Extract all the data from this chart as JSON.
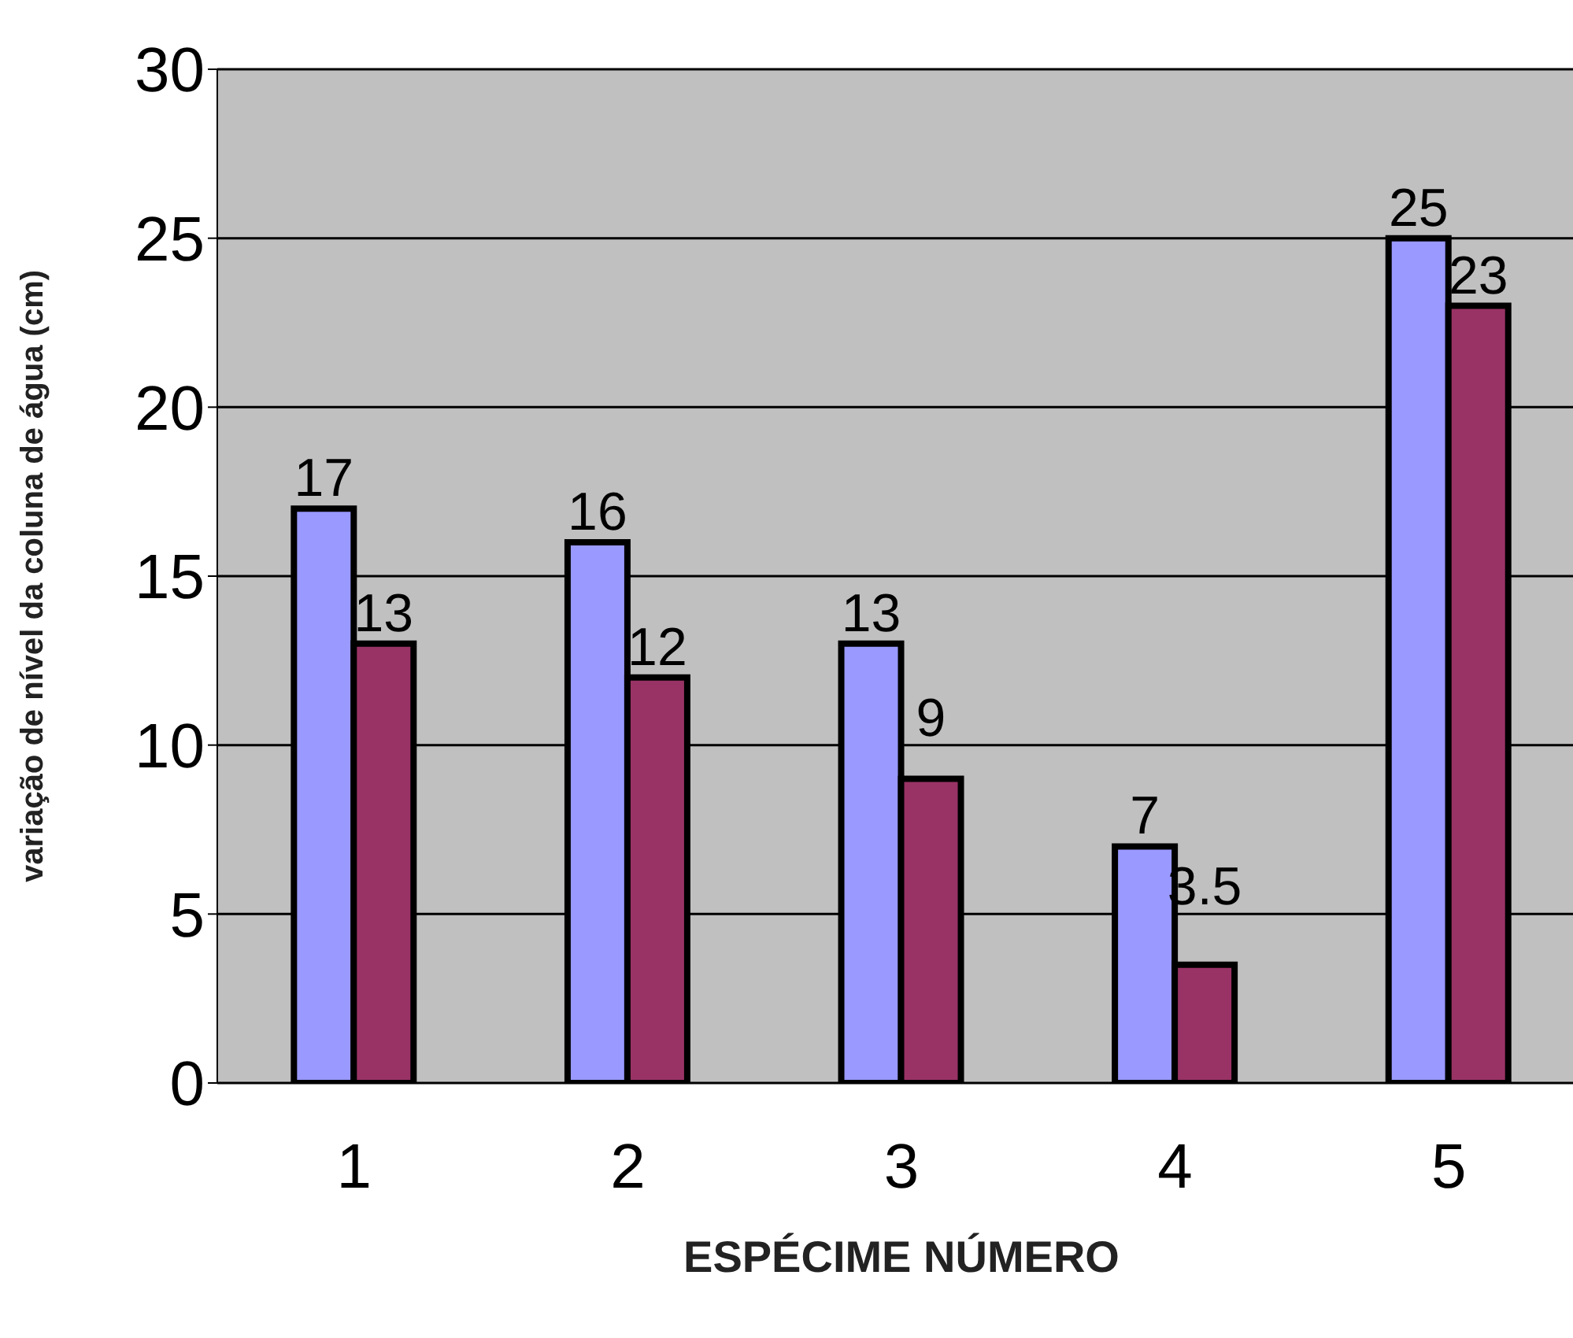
{
  "chart_data": {
    "type": "bar",
    "xlabel": "ESPÉCIME NÚMERO",
    "ylabel": "variação de nível da coluna de água (cm)",
    "categories": [
      "1",
      "2",
      "3",
      "4",
      "5"
    ],
    "series": [
      {
        "color": "#9999ff",
        "values": [
          17,
          16,
          13,
          7,
          25
        ]
      },
      {
        "color": "#993366",
        "values": [
          13,
          12,
          9,
          3.5,
          23
        ]
      }
    ],
    "ylim": [
      0,
      30
    ],
    "yticks": [
      0,
      5,
      10,
      15,
      20,
      25,
      30
    ],
    "grid": "y",
    "data_labels": true,
    "legend": false
  }
}
